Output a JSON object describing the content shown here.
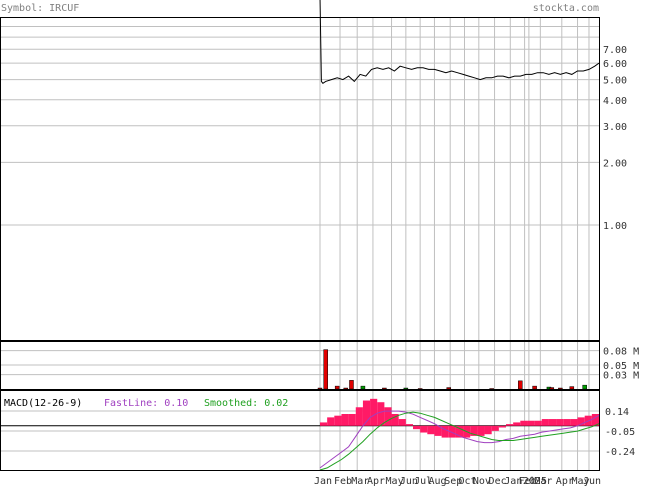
{
  "header": {
    "symbol": "Symbol: IRCUF",
    "site": "stockta.com"
  },
  "colors": {
    "header_text": "#808080",
    "axis_text": "#333333",
    "price_line": "#000000",
    "grid": "#c0c0c0",
    "volume_up": "#00a000",
    "volume_down": "#e00000",
    "macd_hist": "#ff1a66",
    "fastline": "#a040c0",
    "smoothed": "#20a020"
  },
  "macd_legend": {
    "title": "MACD(12-26-9)",
    "fast_label": "FastLine: 0.10",
    "smoothed_label": "Smoothed: 0.02"
  },
  "chart_data": [
    {
      "type": "line",
      "panel": "price",
      "scale": "log",
      "x_ticks": [
        "Jan",
        "Feb",
        "Mar",
        "Apr",
        "May",
        "Jun",
        "Jul",
        "Aug",
        "Sep",
        "Oct",
        "Nov",
        "Dec",
        "Jan",
        "Feb",
        "2025",
        "Mar",
        "Apr",
        "May",
        "Jun"
      ],
      "x_tick_positions": [
        0,
        14,
        26,
        37,
        50,
        60,
        70,
        80,
        91,
        101,
        111,
        122,
        133,
        143,
        146,
        154,
        169,
        180,
        188
      ],
      "y_ticks": [
        "7.00",
        "6.00",
        "5.00",
        "4.00",
        "3.00",
        "2.00",
        "1.00"
      ],
      "y_tick_values": [
        7,
        6,
        5,
        4,
        3,
        2,
        1
      ],
      "y_minor_gridlines": [
        9,
        8
      ],
      "ylim": [
        0.28,
        10
      ],
      "xlim": [
        0,
        195
      ],
      "x": [
        0,
        1,
        2,
        4,
        8,
        12,
        16,
        20,
        24,
        28,
        32,
        36,
        40,
        44,
        48,
        52,
        56,
        60,
        64,
        68,
        72,
        76,
        80,
        84,
        88,
        92,
        96,
        100,
        104,
        108,
        112,
        116,
        120,
        124,
        128,
        132,
        136,
        140,
        144,
        148,
        152,
        156,
        160,
        164,
        168,
        172,
        176,
        180,
        184,
        188,
        192,
        195
      ],
      "series": [
        {
          "values": [
            12,
            4.9,
            4.8,
            4.9,
            5.0,
            5.1,
            5.0,
            5.2,
            4.9,
            5.3,
            5.2,
            5.6,
            5.7,
            5.6,
            5.7,
            5.5,
            5.8,
            5.7,
            5.6,
            5.7,
            5.7,
            5.6,
            5.6,
            5.5,
            5.4,
            5.5,
            5.4,
            5.3,
            5.2,
            5.1,
            5.0,
            5.1,
            5.1,
            5.2,
            5.2,
            5.1,
            5.2,
            5.2,
            5.3,
            5.3,
            5.4,
            5.4,
            5.3,
            5.4,
            5.3,
            5.4,
            5.3,
            5.5,
            5.5,
            5.6,
            5.8,
            6.0
          ]
        }
      ]
    },
    {
      "type": "bar",
      "panel": "volume",
      "y_ticks": [
        "0.08 M",
        "0.05 M",
        "0.03 M"
      ],
      "y_tick_values": [
        0.08,
        0.05,
        0.03
      ],
      "ylim": [
        0,
        0.1
      ],
      "x": [
        0,
        4,
        12,
        18,
        22,
        30,
        45,
        60,
        70,
        90,
        120,
        140,
        150,
        160,
        162,
        168,
        176,
        185
      ],
      "values": [
        0.002,
        0.082,
        0.006,
        0.002,
        0.018,
        0.006,
        0.002,
        0.002,
        0.001,
        0.003,
        0.001,
        0.017,
        0.006,
        0.004,
        0.003,
        0.002,
        0.005,
        0.008
      ],
      "direction": [
        "down",
        "down",
        "down",
        "down",
        "down",
        "up",
        "down",
        "up",
        "down",
        "down",
        "down",
        "down",
        "down",
        "up",
        "down",
        "down",
        "down",
        "up"
      ]
    },
    {
      "type": "line",
      "panel": "macd",
      "y_ticks": [
        "0.14",
        "-0.05",
        "-0.24"
      ],
      "y_tick_values": [
        0.14,
        -0.05,
        -0.24
      ],
      "ylim": [
        -0.42,
        0.34
      ],
      "x": [
        0,
        5,
        10,
        15,
        20,
        25,
        30,
        35,
        40,
        45,
        50,
        55,
        60,
        65,
        70,
        75,
        80,
        85,
        90,
        95,
        100,
        105,
        110,
        115,
        120,
        125,
        130,
        135,
        140,
        145,
        150,
        155,
        160,
        165,
        170,
        175,
        180,
        185,
        190,
        195
      ],
      "series": [
        {
          "name": "FastLine",
          "values": [
            -0.4,
            -0.35,
            -0.3,
            -0.25,
            -0.2,
            -0.1,
            0.0,
            0.08,
            0.12,
            0.14,
            0.14,
            0.14,
            0.13,
            0.11,
            0.08,
            0.05,
            0.02,
            -0.02,
            -0.05,
            -0.08,
            -0.11,
            -0.13,
            -0.15,
            -0.16,
            -0.16,
            -0.15,
            -0.13,
            -0.12,
            -0.1,
            -0.09,
            -0.08,
            -0.06,
            -0.05,
            -0.04,
            -0.03,
            -0.02,
            0.0,
            0.03,
            0.06,
            0.1
          ]
        },
        {
          "name": "Smoothed",
          "values": [
            -0.42,
            -0.4,
            -0.36,
            -0.32,
            -0.27,
            -0.21,
            -0.15,
            -0.08,
            -0.02,
            0.03,
            0.07,
            0.1,
            0.12,
            0.13,
            0.12,
            0.1,
            0.08,
            0.05,
            0.02,
            -0.01,
            -0.04,
            -0.07,
            -0.09,
            -0.11,
            -0.13,
            -0.14,
            -0.14,
            -0.14,
            -0.13,
            -0.12,
            -0.11,
            -0.1,
            -0.09,
            -0.08,
            -0.07,
            -0.06,
            -0.05,
            -0.03,
            -0.01,
            0.02
          ]
        }
      ]
    }
  ]
}
